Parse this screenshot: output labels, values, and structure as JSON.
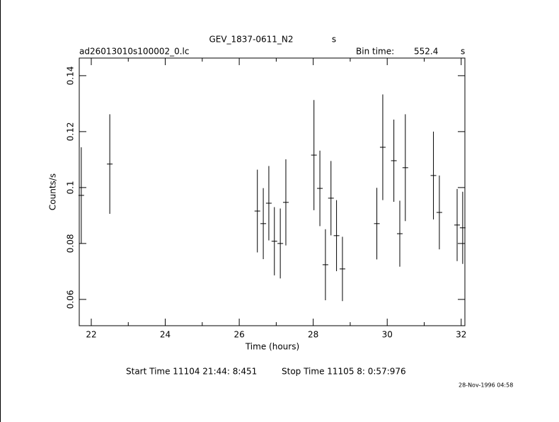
{
  "chart_data": {
    "type": "errorbar",
    "title": "GEV_1837-0611_N2",
    "title_unit": "s",
    "subtitle": "ad26013010s100002_0.lc",
    "bin_label": "Bin time:",
    "bin_time": "552.4",
    "bin_unit": "s",
    "xlabel": "Time (hours)",
    "ylabel": "Counts/s",
    "start_time": "Start Time 11104 21:44: 8:451",
    "stop_time": "Stop Time 11105  8: 0:57:976",
    "date": "28-Nov-1996 04:58",
    "color": "#000000",
    "x": [
      21.73,
      22.5,
      26.49,
      26.65,
      26.8,
      26.95,
      27.11,
      27.26,
      28.02,
      28.18,
      28.33,
      28.48,
      28.63,
      28.79,
      29.72,
      29.88,
      30.18,
      30.34,
      30.49,
      31.25,
      31.41,
      31.89,
      32.04
    ],
    "values": [
      0.0972,
      0.1084,
      0.0916,
      0.0871,
      0.0944,
      0.0808,
      0.08,
      0.0947,
      0.1116,
      0.0997,
      0.0724,
      0.0962,
      0.0828,
      0.0709,
      0.0871,
      0.1144,
      0.1096,
      0.0835,
      0.1071,
      0.1043,
      0.0911,
      0.0866,
      0.0856
    ],
    "errors": [
      0.0172,
      0.0178,
      0.0148,
      0.0127,
      0.0133,
      0.0122,
      0.0125,
      0.0154,
      0.0197,
      0.0135,
      0.0127,
      0.0133,
      0.0127,
      0.0115,
      0.0128,
      0.0189,
      0.0147,
      0.0118,
      0.0191,
      0.0157,
      0.0132,
      0.0129,
      0.0129
    ],
    "xlim": [
      21.675,
      32.1
    ],
    "ylim": [
      0.0506,
      0.1463
    ],
    "xticks": [
      22,
      24,
      26,
      28,
      30,
      32
    ],
    "x_minor_ticks": [
      23,
      25,
      27,
      29,
      31
    ],
    "yticks": [
      0.06,
      0.08,
      0.1,
      0.12,
      0.14
    ]
  }
}
